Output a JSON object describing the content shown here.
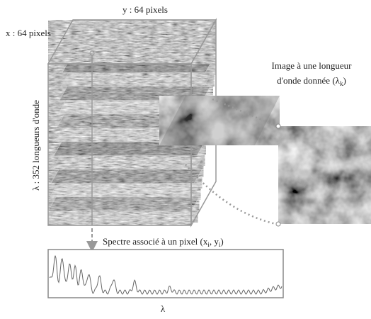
{
  "labels": {
    "y_axis": "y : 64 pixels",
    "x_axis": "x : 64 pixels",
    "lambda_axis": "λ : 352 longueurs d'onde",
    "image_caption": {
      "line1": "Image à une longueur",
      "line2": "d'onde donnée (λ",
      "sub": "k",
      "end": ")"
    },
    "spectrum_caption": {
      "start": "Spectre associé à un pixel (x",
      "sub1": "i",
      "mid": ", y",
      "sub2": "i",
      "end": ")"
    },
    "spectrum_axis": "λ"
  }
}
